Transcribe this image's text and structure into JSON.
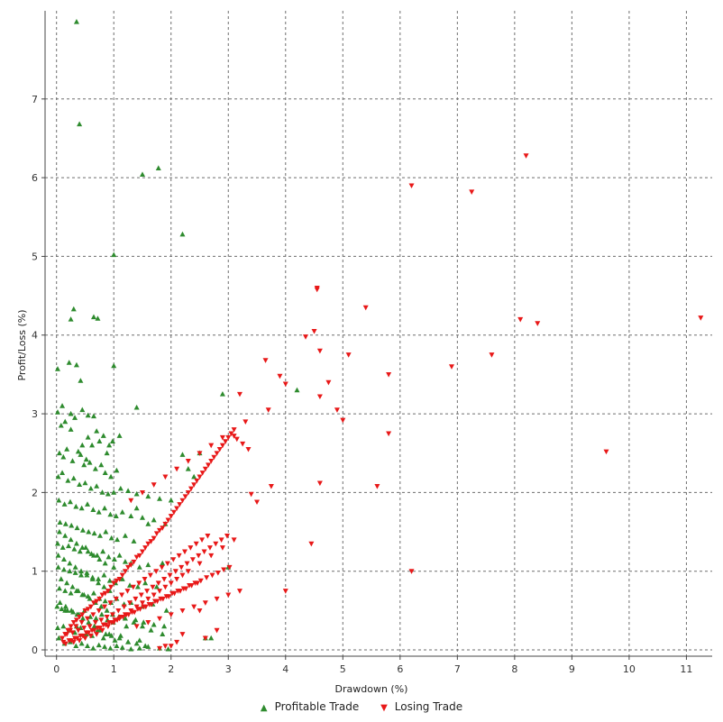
{
  "chart_data": {
    "type": "scatter",
    "xlabel": "Drawdown (%)",
    "ylabel": "Profit/Loss (%)",
    "xlim": [
      -0.2,
      11.45
    ],
    "ylim": [
      -0.08,
      8.12
    ],
    "x_ticks": [
      0,
      1,
      2,
      3,
      4,
      5,
      6,
      7,
      8,
      9,
      10,
      11
    ],
    "y_ticks": [
      0,
      1,
      2,
      3,
      4,
      5,
      6,
      7
    ],
    "grid": true,
    "legend_position": "bottom-center",
    "series": [
      {
        "name": "Profitable Trade",
        "marker": "triangle-up",
        "color": "#2e8b2e",
        "x": [
          0.35,
          0.4,
          1.78,
          1.5,
          2.2,
          1.0,
          0.3,
          0.25,
          0.65,
          0.72,
          0.02,
          0.22,
          0.35,
          0.42,
          1.0,
          0.1,
          0.25,
          0.45,
          0.55,
          0.65,
          0.02,
          1.4,
          0.08,
          0.15,
          0.25,
          0.32,
          0.45,
          0.55,
          0.62,
          0.7,
          0.75,
          0.82,
          0.88,
          0.92,
          0.98,
          1.1,
          0.05,
          0.12,
          0.18,
          0.28,
          0.38,
          0.42,
          0.48,
          0.52,
          0.58,
          0.68,
          0.78,
          0.85,
          0.95,
          1.05,
          2.2,
          0.03,
          0.1,
          0.2,
          0.3,
          0.4,
          0.5,
          0.6,
          0.7,
          0.8,
          0.9,
          1.0,
          1.12,
          1.25,
          1.4,
          1.6,
          1.8,
          2.0,
          0.04,
          0.14,
          0.24,
          0.34,
          0.44,
          0.54,
          0.64,
          0.74,
          0.84,
          0.94,
          1.04,
          1.15,
          1.3,
          1.5,
          1.7,
          1.9,
          0.06,
          0.16,
          0.26,
          0.36,
          0.46,
          0.56,
          0.66,
          0.76,
          0.86,
          0.96,
          1.06,
          1.2,
          1.35,
          0.02,
          0.11,
          0.21,
          0.31,
          0.41,
          0.51,
          0.61,
          0.71,
          0.81,
          0.91,
          1.01,
          1.1,
          1.2,
          1.3,
          1.45,
          1.6,
          1.85,
          0.03,
          0.13,
          0.23,
          0.33,
          0.43,
          0.53,
          0.63,
          0.73,
          0.83,
          0.93,
          1.03,
          1.15,
          1.28,
          1.42,
          1.55,
          1.75,
          0.05,
          0.15,
          0.25,
          0.35,
          0.45,
          0.55,
          0.65,
          0.75,
          0.85,
          0.95,
          1.05,
          1.18,
          1.3,
          1.5,
          1.68,
          1.92,
          0.01,
          0.09,
          0.19,
          0.29,
          0.39,
          0.49,
          0.59,
          0.69,
          0.79,
          0.89,
          0.99,
          1.09,
          1.22,
          1.38,
          1.52,
          1.7,
          1.88,
          0.02,
          0.12,
          0.22,
          0.32,
          0.42,
          0.52,
          0.62,
          0.72,
          0.82,
          0.92,
          1.02,
          1.12,
          1.25,
          1.45,
          0.04,
          0.14,
          0.24,
          0.34,
          0.44,
          0.54,
          0.64,
          0.74,
          0.84,
          0.94,
          1.05,
          1.15,
          1.3,
          1.45,
          1.6,
          1.8,
          1.95,
          0.06,
          0.16,
          0.26,
          0.36,
          0.46,
          0.56,
          0.66,
          0.76,
          0.86,
          0.96,
          1.1,
          1.25,
          1.4,
          1.55,
          0.08,
          0.18,
          0.28,
          0.38,
          0.48,
          0.58,
          0.68,
          0.78,
          0.88,
          0.98,
          1.2,
          1.35,
          1.5,
          1.65,
          1.85,
          0.03,
          0.13,
          0.23,
          0.33,
          0.43,
          0.53,
          0.63,
          0.73,
          0.83,
          0.93,
          1.4,
          1.6,
          0.05,
          0.15,
          0.25,
          0.35,
          0.45,
          0.55,
          0.65,
          0.75,
          0.85,
          1.0,
          2.5,
          2.6,
          2.7,
          2.4,
          2.3,
          2.9,
          3.0,
          4.2,
          0.15,
          0.35
        ],
        "y": [
          7.98,
          6.68,
          6.12,
          6.04,
          5.28,
          5.02,
          4.33,
          4.2,
          4.23,
          4.21,
          3.57,
          3.65,
          3.62,
          3.42,
          3.61,
          3.1,
          3.0,
          3.05,
          2.98,
          2.97,
          3.02,
          3.08,
          2.85,
          2.9,
          2.8,
          2.95,
          2.6,
          2.7,
          2.6,
          2.78,
          2.65,
          2.72,
          2.5,
          2.6,
          2.65,
          2.72,
          2.5,
          2.45,
          2.55,
          2.4,
          2.52,
          2.48,
          2.35,
          2.42,
          2.38,
          2.3,
          2.35,
          2.25,
          2.2,
          2.28,
          2.48,
          2.2,
          2.25,
          2.15,
          2.18,
          2.1,
          2.12,
          2.05,
          2.08,
          2.0,
          1.98,
          2.0,
          2.05,
          2.02,
          1.98,
          1.95,
          1.92,
          1.9,
          1.9,
          1.85,
          1.88,
          1.82,
          1.8,
          1.85,
          1.78,
          1.75,
          1.8,
          1.72,
          1.7,
          1.75,
          1.7,
          1.68,
          1.65,
          1.6,
          1.62,
          1.6,
          1.58,
          1.55,
          1.52,
          1.5,
          1.48,
          1.45,
          1.5,
          1.42,
          1.4,
          1.45,
          1.38,
          1.35,
          1.3,
          1.32,
          1.28,
          1.25,
          1.3,
          1.22,
          1.2,
          1.25,
          1.18,
          1.15,
          1.2,
          1.12,
          1.1,
          1.05,
          1.08,
          1.1,
          1.05,
          1.02,
          1.0,
          0.98,
          0.95,
          0.98,
          0.92,
          0.9,
          0.95,
          0.88,
          0.85,
          0.9,
          0.82,
          0.8,
          0.85,
          0.8,
          0.78,
          0.75,
          0.72,
          0.75,
          0.7,
          0.68,
          0.72,
          0.65,
          0.62,
          0.6,
          0.65,
          0.58,
          0.6,
          0.55,
          0.58,
          0.5,
          0.55,
          0.52,
          0.5,
          0.48,
          0.45,
          0.5,
          0.42,
          0.4,
          0.45,
          0.38,
          0.35,
          0.42,
          0.3,
          0.38,
          0.35,
          0.32,
          0.3,
          0.28,
          0.3,
          0.25,
          0.22,
          0.28,
          0.2,
          0.18,
          0.25,
          0.15,
          0.2,
          0.12,
          0.18,
          0.1,
          0.12,
          0.15,
          0.08,
          0.1,
          0.05,
          0.08,
          0.05,
          0.02,
          0.06,
          0.04,
          0.02,
          0.05,
          0.03,
          0.01,
          0.02,
          0.04,
          0.02,
          0.01,
          0.6,
          0.55,
          0.5,
          0.45,
          0.4,
          0.35,
          0.3,
          0.25,
          0.2,
          0.18,
          0.15,
          0.1,
          0.08,
          0.05,
          0.9,
          0.85,
          0.8,
          0.75,
          0.7,
          0.65,
          0.6,
          0.55,
          0.5,
          0.45,
          0.4,
          0.35,
          0.3,
          0.25,
          0.2,
          1.2,
          1.15,
          1.1,
          1.05,
          1.0,
          0.95,
          0.9,
          0.85,
          0.8,
          0.75,
          1.8,
          1.6,
          1.5,
          1.45,
          1.4,
          1.35,
          1.3,
          1.25,
          1.2,
          1.15,
          1.1,
          1.05,
          2.5,
          0.15,
          0.15,
          2.2,
          2.3,
          3.25,
          1.05,
          3.3,
          0.5,
          0.3
        ]
      },
      {
        "name": "Losing Trade",
        "marker": "triangle-down",
        "color": "#e81818",
        "x": [
          8.2,
          6.2,
          7.25,
          4.55,
          4.55,
          5.4,
          8.1,
          8.4,
          11.25,
          4.5,
          4.35,
          4.6,
          5.1,
          7.6,
          3.65,
          6.9,
          3.9,
          4.0,
          5.8,
          4.75,
          3.2,
          3.7,
          4.6,
          4.9,
          5.0,
          5.8,
          9.6,
          4.6,
          5.6,
          3.75,
          3.4,
          3.5,
          4.45,
          6.2,
          4.0,
          0.1,
          0.15,
          0.2,
          0.25,
          0.3,
          0.35,
          0.4,
          0.45,
          0.5,
          0.55,
          0.6,
          0.65,
          0.7,
          0.75,
          0.8,
          0.85,
          0.9,
          0.95,
          1.0,
          1.05,
          1.1,
          1.15,
          1.2,
          1.25,
          1.3,
          1.35,
          1.4,
          1.45,
          1.5,
          1.55,
          1.6,
          1.65,
          1.7,
          1.75,
          1.8,
          1.85,
          1.9,
          1.95,
          2.0,
          2.05,
          2.1,
          2.15,
          2.2,
          2.25,
          2.3,
          2.35,
          2.4,
          2.45,
          2.5,
          2.55,
          2.6,
          2.65,
          2.7,
          2.75,
          2.8,
          2.85,
          2.9,
          2.95,
          3.0,
          3.05,
          3.1,
          3.15,
          3.25,
          3.35,
          0.12,
          0.22,
          0.32,
          0.42,
          0.52,
          0.62,
          0.72,
          0.82,
          0.92,
          1.02,
          1.12,
          1.22,
          1.32,
          1.42,
          1.52,
          1.62,
          1.72,
          1.82,
          1.92,
          2.02,
          2.12,
          2.22,
          2.32,
          2.42,
          2.52,
          2.62,
          2.72,
          2.82,
          2.92,
          3.02,
          0.18,
          0.28,
          0.38,
          0.48,
          0.58,
          0.68,
          0.78,
          0.88,
          0.98,
          1.08,
          1.18,
          1.28,
          1.38,
          1.48,
          1.58,
          1.68,
          1.78,
          1.88,
          1.98,
          2.08,
          2.18,
          2.28,
          2.38,
          2.48,
          2.58,
          2.68,
          2.78,
          2.88,
          2.98,
          0.24,
          0.34,
          0.44,
          0.54,
          0.64,
          0.74,
          0.84,
          0.94,
          1.04,
          1.14,
          1.24,
          1.34,
          1.44,
          1.54,
          1.64,
          1.74,
          1.84,
          1.94,
          2.04,
          2.14,
          2.24,
          2.34,
          2.44,
          2.54,
          2.64,
          0.26,
          0.36,
          0.46,
          0.56,
          0.66,
          0.76,
          0.86,
          0.96,
          1.06,
          1.16,
          1.26,
          1.36,
          1.46,
          1.56,
          1.66,
          1.76,
          1.86,
          1.96,
          2.06,
          2.16,
          2.26,
          2.36,
          2.46,
          0.16,
          0.3,
          0.4,
          0.5,
          0.6,
          0.7,
          0.8,
          0.9,
          1.0,
          1.1,
          1.2,
          1.3,
          1.4,
          1.5,
          1.6,
          1.7,
          1.8,
          1.9,
          2.0,
          2.1,
          2.2,
          2.3,
          2.5,
          2.7,
          2.9,
          3.1,
          1.3,
          1.5,
          1.7,
          1.9,
          2.1,
          2.3,
          2.5,
          2.7,
          2.9,
          3.1,
          3.3,
          1.4,
          1.6,
          1.8,
          2.0,
          2.2,
          2.4,
          2.6,
          2.8,
          3.0,
          3.2,
          2.0,
          2.1,
          2.6,
          1.8,
          2.2,
          1.9,
          2.5,
          2.8
        ],
        "y": [
          6.28,
          5.9,
          5.82,
          4.6,
          4.58,
          4.35,
          4.2,
          4.15,
          4.22,
          4.05,
          3.98,
          3.8,
          3.75,
          3.75,
          3.68,
          3.6,
          3.48,
          3.38,
          3.5,
          3.4,
          3.25,
          3.05,
          3.22,
          3.05,
          2.92,
          2.75,
          2.52,
          2.12,
          2.08,
          2.08,
          1.98,
          1.88,
          1.35,
          1.0,
          0.75,
          0.15,
          0.2,
          0.25,
          0.3,
          0.35,
          0.38,
          0.42,
          0.45,
          0.5,
          0.52,
          0.55,
          0.6,
          0.62,
          0.65,
          0.7,
          0.72,
          0.75,
          0.8,
          0.85,
          0.88,
          0.9,
          0.95,
          1.0,
          1.05,
          1.08,
          1.12,
          1.18,
          1.2,
          1.25,
          1.3,
          1.35,
          1.38,
          1.42,
          1.48,
          1.52,
          1.55,
          1.6,
          1.65,
          1.7,
          1.75,
          1.8,
          1.85,
          1.9,
          1.95,
          2.0,
          2.05,
          2.1,
          2.15,
          2.2,
          2.25,
          2.3,
          2.35,
          2.4,
          2.45,
          2.5,
          2.55,
          2.6,
          2.65,
          2.7,
          2.75,
          2.72,
          2.68,
          2.62,
          2.55,
          0.1,
          0.12,
          0.15,
          0.18,
          0.22,
          0.25,
          0.28,
          0.32,
          0.35,
          0.38,
          0.42,
          0.45,
          0.48,
          0.52,
          0.55,
          0.58,
          0.62,
          0.65,
          0.68,
          0.72,
          0.75,
          0.78,
          0.82,
          0.85,
          0.88,
          0.92,
          0.95,
          0.98,
          1.02,
          1.05,
          0.2,
          0.22,
          0.25,
          0.28,
          0.3,
          0.35,
          0.38,
          0.42,
          0.45,
          0.5,
          0.55,
          0.6,
          0.65,
          0.7,
          0.75,
          0.8,
          0.85,
          0.9,
          0.95,
          1.0,
          1.05,
          1.1,
          1.15,
          1.2,
          1.25,
          1.3,
          1.35,
          1.4,
          1.45,
          0.25,
          0.3,
          0.35,
          0.4,
          0.45,
          0.5,
          0.55,
          0.6,
          0.65,
          0.7,
          0.75,
          0.8,
          0.85,
          0.9,
          0.95,
          1.0,
          1.05,
          1.1,
          1.15,
          1.2,
          1.25,
          1.3,
          1.35,
          1.4,
          1.45,
          0.12,
          0.15,
          0.18,
          0.22,
          0.25,
          0.28,
          0.32,
          0.35,
          0.38,
          0.42,
          0.45,
          0.48,
          0.52,
          0.55,
          0.58,
          0.62,
          0.65,
          0.68,
          0.72,
          0.75,
          0.78,
          0.82,
          0.85,
          0.08,
          0.1,
          0.12,
          0.15,
          0.18,
          0.2,
          0.25,
          0.3,
          0.35,
          0.4,
          0.45,
          0.5,
          0.55,
          0.6,
          0.65,
          0.7,
          0.75,
          0.8,
          0.85,
          0.9,
          0.95,
          1.0,
          1.1,
          1.2,
          1.3,
          1.4,
          1.9,
          2.0,
          2.1,
          2.2,
          2.3,
          2.4,
          2.5,
          2.6,
          2.7,
          2.8,
          2.9,
          0.3,
          0.35,
          0.4,
          0.45,
          0.5,
          0.55,
          0.6,
          0.65,
          0.7,
          0.75,
          0.05,
          0.1,
          0.15,
          0.02,
          0.2,
          0.05,
          0.5,
          0.25
        ]
      }
    ]
  }
}
